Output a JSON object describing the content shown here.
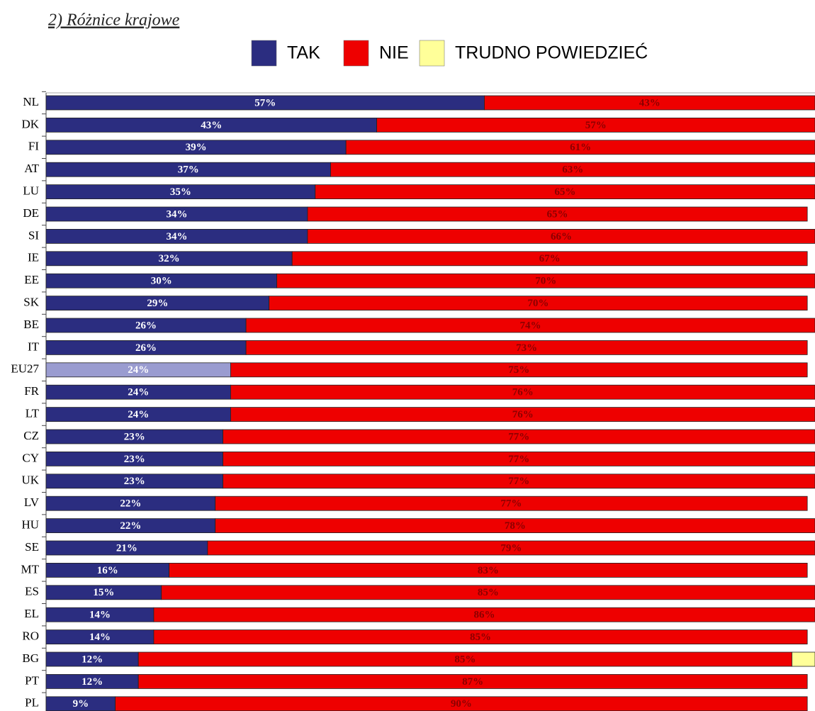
{
  "chart_data": {
    "type": "stacked_barh",
    "title": "2) Różnice krajowe",
    "categories": [
      "NL",
      "DK",
      "FI",
      "AT",
      "LU",
      "DE",
      "SI",
      "IE",
      "EE",
      "SK",
      "BE",
      "IT",
      "EU27",
      "FR",
      "LT",
      "CZ",
      "CY",
      "UK",
      "LV",
      "HU",
      "SE",
      "MT",
      "ES",
      "EL",
      "RO",
      "BG",
      "PT",
      "PL"
    ],
    "series": [
      {
        "name": "TAK",
        "color": "#2b2d80",
        "label_color": "#ffffff",
        "values": [
          57,
          43,
          39,
          37,
          35,
          34,
          34,
          32,
          30,
          29,
          26,
          26,
          24,
          24,
          24,
          23,
          23,
          23,
          22,
          22,
          21,
          16,
          15,
          14,
          14,
          12,
          12,
          9
        ],
        "value_labels": [
          "57%",
          "43%",
          "39%",
          "37%",
          "35%",
          "34%",
          "34%",
          "32%",
          "30%",
          "29%",
          "26%",
          "26%",
          "24%",
          "24%",
          "24%",
          "23%",
          "23%",
          "23%",
          "22%",
          "22%",
          "21%",
          "16%",
          "15%",
          "14%",
          "14%",
          "12%",
          "12%",
          "9%"
        ]
      },
      {
        "name": "NIE",
        "color": "#ee0000",
        "label_color": "#8b0000",
        "values": [
          43,
          57,
          61,
          63,
          65,
          65,
          66,
          67,
          70,
          70,
          74,
          73,
          75,
          76,
          76,
          77,
          77,
          77,
          77,
          78,
          79,
          83,
          85,
          86,
          85,
          85,
          87,
          90
        ],
        "value_labels": [
          "43%",
          "57%",
          "61%",
          "63%",
          "65%",
          "65%",
          "66%",
          "67%",
          "70%",
          "70%",
          "74%",
          "73%",
          "75%",
          "76%",
          "76%",
          "77%",
          "77%",
          "77%",
          "77%",
          "78%",
          "79%",
          "83%",
          "85%",
          "86%",
          "85%",
          "85%",
          "87%",
          "90%"
        ]
      },
      {
        "name": "TRUDNO POWIEDZIEĆ",
        "color": "#ffff99",
        "values": [
          0,
          0,
          0,
          0,
          0,
          0,
          0,
          0,
          0,
          0,
          0,
          0,
          0,
          0,
          0,
          0,
          0,
          0,
          0,
          0,
          0,
          0,
          0,
          0,
          0,
          3,
          0,
          0
        ]
      }
    ],
    "highlight_category": "EU27",
    "highlight_color": "#9a9cd0",
    "xlim": [
      0,
      100
    ]
  }
}
